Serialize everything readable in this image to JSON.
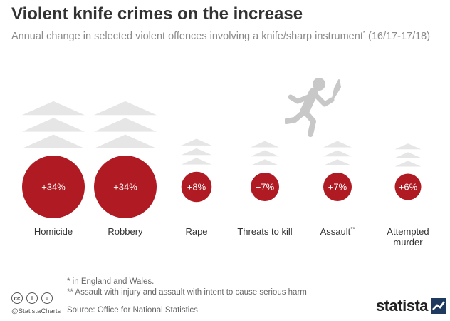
{
  "title": "Violent knife crimes on the increase",
  "subtitle": "Annual change in selected violent offences involving a knife/sharp instrument",
  "subtitle_mark": "*",
  "subtitle_period": " (16/17-17/18)",
  "footnotes": [
    "*   in England and Wales.",
    "** Assault with injury and assault with intent to cause serious harm"
  ],
  "source": "Source: Office for National Statistics",
  "handle": "@StatistaCharts",
  "brand": "statista",
  "cc_icons": [
    "cc",
    "i",
    "="
  ],
  "colors": {
    "bubble": "#b01a22",
    "chevron": "#e6e6e6",
    "runner": "#c8c8c8"
  },
  "chart_data": {
    "type": "bubble",
    "categories": [
      "Homicide",
      "Robbery",
      "Rape",
      "Threats to kill",
      "Assault**",
      "Attempted murder"
    ],
    "values": [
      34,
      34,
      8,
      7,
      7,
      6
    ],
    "data_labels": [
      "+34%",
      "+34%",
      "+8%",
      "+7%",
      "+7%",
      "+6%"
    ],
    "unit": "%"
  }
}
